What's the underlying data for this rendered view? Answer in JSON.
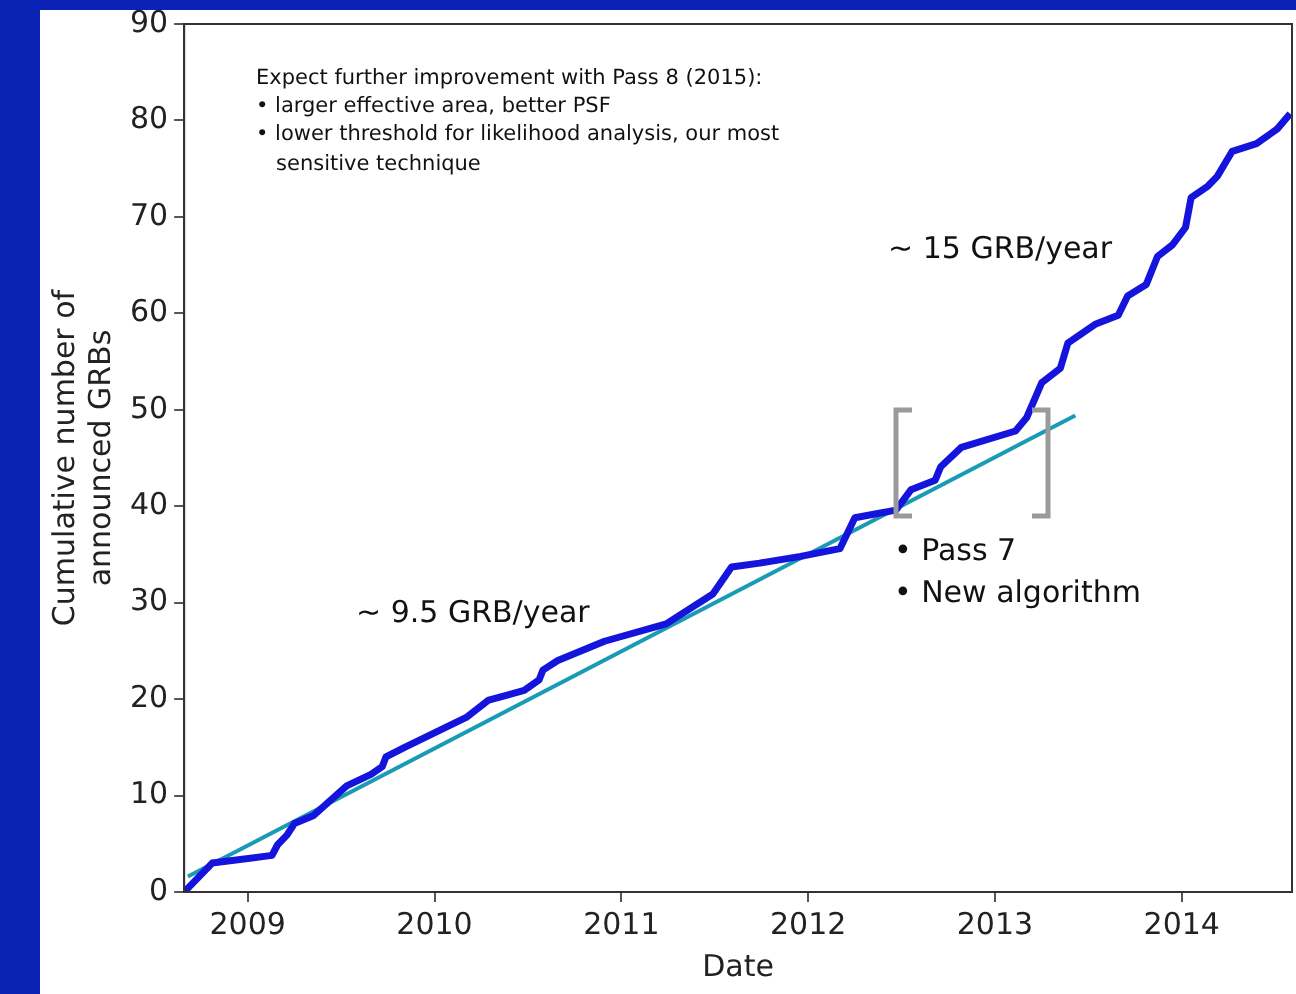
{
  "chart_data": {
    "type": "line",
    "xlabel": "Date",
    "ylabel": "Cumulative number of\nannounced GRBs",
    "annotations": [
      "Expect further improvement with Pass 8 (2015):\n• larger effective area, better PSF\n• lower threshold for likelihood analysis, our most\n   sensitive technique",
      "~ 9.5 GRB/year",
      "~ 15 GRB/year",
      {
        "text": "• Pass 7\n• New algorithm",
        "x": 2012.47,
        "y": 39.6
      }
    ],
    "xlim": [
      2008.66,
      2014.59
    ],
    "xticks": [
      2009,
      2010,
      2011,
      2012,
      2013,
      2014
    ],
    "ylim": [
      0,
      90
    ],
    "yticks": [
      0,
      10,
      20,
      30,
      40,
      50,
      60,
      70,
      80,
      90
    ],
    "grid": false,
    "legend": false,
    "marker": "none",
    "line_style": "solid",
    "series": [
      {
        "color": "#1414dc",
        "x": [
          2008.66,
          2008.81,
          2009.13,
          2009.16,
          2009.21,
          2009.25,
          2009.35,
          2009.53,
          2009.66,
          2009.72,
          2009.74,
          2009.84,
          2010.17,
          2010.29,
          2010.48,
          2010.56,
          2010.58,
          2010.66,
          2010.91,
          2011.24,
          2011.49,
          2011.59,
          2011.74,
          2011.96,
          2012.17,
          2012.25,
          2012.47,
          2012.55,
          2012.68,
          2012.71,
          2012.82,
          2013.11,
          2013.17,
          2013.25,
          2013.35,
          2013.39,
          2013.54,
          2013.66,
          2013.71,
          2013.81,
          2013.87,
          2013.95,
          2014.02,
          2014.05,
          2014.14,
          2014.19,
          2014.27,
          2014.4,
          2014.51,
          2014.58
        ],
        "values": [
          0,
          3,
          3.8,
          4.9,
          5.9,
          7.1,
          7.9,
          11,
          12.2,
          13,
          14,
          15,
          18.1,
          19.9,
          20.9,
          22,
          23,
          24,
          26,
          27.8,
          30.9,
          33.7,
          34.1,
          34.8,
          35.6,
          38.8,
          39.6,
          41.7,
          42.7,
          44.1,
          46.1,
          47.8,
          49.2,
          52.8,
          54.3,
          56.9,
          58.9,
          59.8,
          61.8,
          63,
          65.9,
          67.1,
          68.9,
          72,
          73.2,
          74.2,
          76.8,
          77.6,
          79.1,
          80.7
        ]
      },
      {
        "type": "line",
        "color": "#1a9bb5",
        "x": [
          2008.68,
          2013.43
        ],
        "values": [
          1.6,
          49.4
        ]
      }
    ]
  }
}
